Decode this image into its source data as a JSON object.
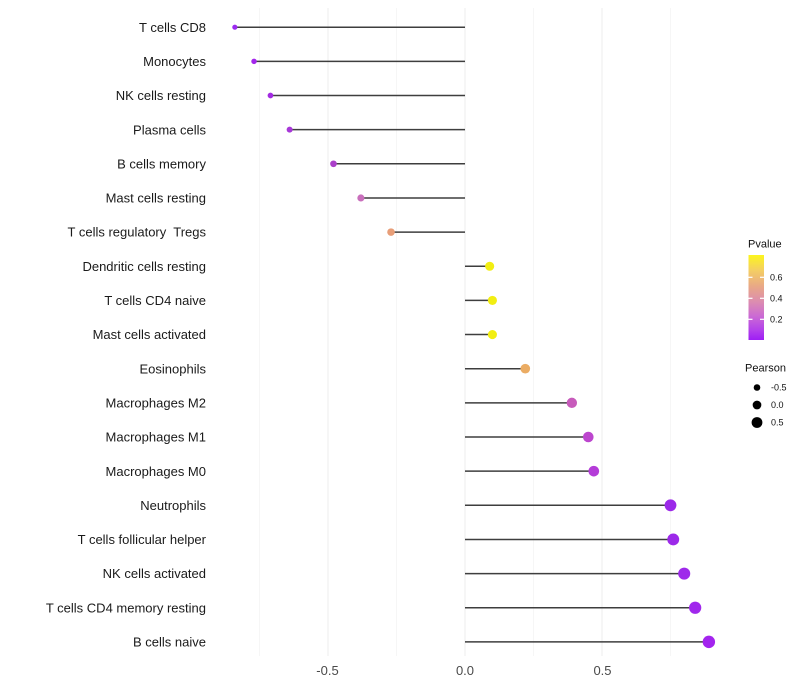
{
  "chart_data": {
    "type": "lollipop",
    "title": "",
    "xlabel": "",
    "ylabel": "",
    "x_tick_labels": [
      "-0.5",
      "0.0",
      "0.5"
    ],
    "x_ticks": [
      -0.5,
      0.0,
      0.5
    ],
    "x_minor_ticks": [
      -0.75,
      -0.25,
      0.25,
      0.75
    ],
    "xlim": [
      -0.93,
      0.97
    ],
    "grid": true,
    "legend_position": "right",
    "points": [
      {
        "label": "T cells CD8",
        "pearson": -0.84,
        "pvalue_approx": 0.05,
        "color": "#9c2bf0"
      },
      {
        "label": "Monocytes",
        "pearson": -0.77,
        "pvalue_approx": 0.05,
        "color": "#a326ec"
      },
      {
        "label": "NK cells resting",
        "pearson": -0.71,
        "pvalue_approx": 0.08,
        "color": "#a32be2"
      },
      {
        "label": "Plasma cells",
        "pearson": -0.64,
        "pvalue_approx": 0.12,
        "color": "#a737d8"
      },
      {
        "label": "B cells memory",
        "pearson": -0.48,
        "pvalue_approx": 0.18,
        "color": "#ab40ca"
      },
      {
        "label": "Mast cells resting",
        "pearson": -0.38,
        "pvalue_approx": 0.35,
        "color": "#c96fbc"
      },
      {
        "label": "T cells regulatory  Tregs",
        "pearson": -0.27,
        "pvalue_approx": 0.5,
        "color": "#e89e78"
      },
      {
        "label": "Dendritic cells resting",
        "pearson": 0.09,
        "pvalue_approx": 0.68,
        "color": "#f2ee12"
      },
      {
        "label": "T cells CD4 naive",
        "pearson": 0.1,
        "pvalue_approx": 0.68,
        "color": "#f2ee12"
      },
      {
        "label": "Mast cells activated",
        "pearson": 0.1,
        "pvalue_approx": 0.68,
        "color": "#f2ee12"
      },
      {
        "label": "Eosinophils",
        "pearson": 0.22,
        "pvalue_approx": 0.45,
        "color": "#ebac63"
      },
      {
        "label": "Macrophages M2",
        "pearson": 0.39,
        "pvalue_approx": 0.32,
        "color": "#c75bbb"
      },
      {
        "label": "Macrophages M1",
        "pearson": 0.45,
        "pvalue_approx": 0.25,
        "color": "#bc46ce"
      },
      {
        "label": "Macrophages M0",
        "pearson": 0.47,
        "pvalue_approx": 0.2,
        "color": "#b43cd8"
      },
      {
        "label": "Neutrophils",
        "pearson": 0.75,
        "pvalue_approx": 0.06,
        "color": "#9c29e9"
      },
      {
        "label": "T cells follicular helper",
        "pearson": 0.76,
        "pvalue_approx": 0.06,
        "color": "#9c29e9"
      },
      {
        "label": "NK cells activated",
        "pearson": 0.8,
        "pvalue_approx": 0.06,
        "color": "#9e29ea"
      },
      {
        "label": "T cells CD4 memory resting",
        "pearson": 0.84,
        "pvalue_approx": 0.05,
        "color": "#a027ec"
      },
      {
        "label": "B cells naive",
        "pearson": 0.89,
        "pvalue_approx": 0.04,
        "color": "#a324ee"
      }
    ],
    "legend_pvalue": {
      "title": "Pvalue",
      "tick_labels": [
        "0.6",
        "0.4",
        "0.2"
      ],
      "tick_values": [
        0.6,
        0.4,
        0.2
      ],
      "gradient_stops": [
        {
          "offset": 0.0,
          "color": "#fcf51d"
        },
        {
          "offset": 0.18,
          "color": "#f4ce63"
        },
        {
          "offset": 0.38,
          "color": "#e8a689"
        },
        {
          "offset": 0.55,
          "color": "#dc8db0"
        },
        {
          "offset": 0.72,
          "color": "#cb6ad4"
        },
        {
          "offset": 0.88,
          "color": "#b342ea"
        },
        {
          "offset": 1.0,
          "color": "#9e1ef4"
        }
      ]
    },
    "legend_pearson": {
      "title": "Pearson",
      "items": [
        {
          "label": "-0.5",
          "value": -0.5
        },
        {
          "label": "0.0",
          "value": 0.0
        },
        {
          "label": "0.5",
          "value": 0.5
        }
      ],
      "dot_color": "#000000"
    },
    "stem_color": "#3e3e3e",
    "grid_major_color": "#ececec",
    "grid_minor_color": "#f6f6f6"
  }
}
